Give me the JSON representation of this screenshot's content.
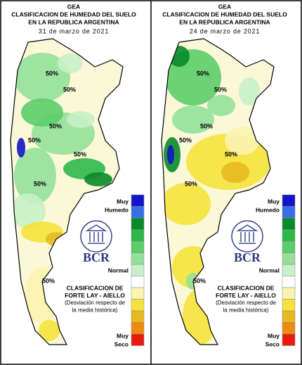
{
  "panels": [
    {
      "header": [
        "GEA",
        "CLASIFICACION DE HUMEDAD DEL SUELO",
        "EN LA REPUBLICA ARGENTINA",
        "31 de marzo de 2021"
      ],
      "contour_labels": [
        "50%",
        "50%",
        "50%",
        "50%",
        "50%",
        "50%",
        "50%"
      ],
      "logo": "BCR",
      "legend": {
        "wet": [
          "Muy",
          "Humedo"
        ],
        "normal": "Normal",
        "dry": [
          "Muy",
          "Seco"
        ],
        "colors": [
          "#1414c8",
          "#3a6ee8",
          "#0a8a2a",
          "#2eb84a",
          "#5ccd6a",
          "#94e09a",
          "#c8f0c8",
          "#ffffff",
          "#fbf3b0",
          "#f5e23c",
          "#e8b820",
          "#ee8a10",
          "#e81a10"
        ]
      },
      "note": [
        "CLASIFICACION DE",
        "FORTE LAY - AIELLO",
        "(Desviación respecto de",
        "la media histórica)"
      ]
    },
    {
      "header": [
        "GEA",
        "CLASIFICACION DE HUMEDAD DEL SUELO",
        "EN LA REPUBLICA ARGENTINA",
        "24 de marzo de 2021"
      ],
      "contour_labels": [
        "50%",
        "50%",
        "50%",
        "50%",
        "50%",
        "50%",
        "50%"
      ],
      "logo": "BCR",
      "legend": {
        "wet": [
          "Muy",
          "Humedo"
        ],
        "normal": "Normal",
        "dry": [
          "Muy",
          "Seco"
        ],
        "colors": [
          "#1414c8",
          "#3a6ee8",
          "#0a8a2a",
          "#2eb84a",
          "#5ccd6a",
          "#94e09a",
          "#c8f0c8",
          "#ffffff",
          "#fbf3b0",
          "#f5e23c",
          "#e8b820",
          "#ee8a10",
          "#e81a10"
        ]
      },
      "note": [
        "CLASIFICACION DE",
        "FORTE LAY - AIELLO",
        "(Desviación respecto de",
        "la media histórica)"
      ]
    }
  ]
}
